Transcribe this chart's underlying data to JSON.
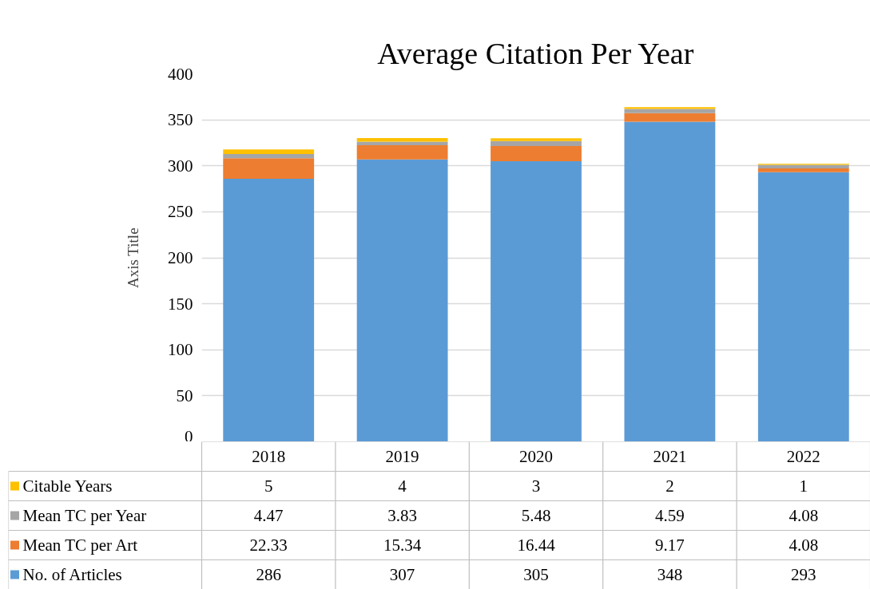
{
  "chart_data": {
    "type": "bar",
    "title": "Average Citation Per Year",
    "ylabel": "Axis Title",
    "categories": [
      "2018",
      "2019",
      "2020",
      "2021",
      "2022"
    ],
    "stacked": true,
    "series": [
      {
        "name": "No. of Articles",
        "color": "#5b9bd5",
        "values": [
          286,
          307,
          305,
          348,
          293
        ]
      },
      {
        "name": "Mean TC per Art",
        "color": "#ed7d31",
        "values": [
          22.33,
          15.34,
          16.44,
          9.17,
          4.08
        ]
      },
      {
        "name": "Mean TC per Year",
        "color": "#a5a5a5",
        "values": [
          4.47,
          3.83,
          5.48,
          4.59,
          4.08
        ]
      },
      {
        "name": "Citable Years",
        "color": "#ffc000",
        "values": [
          5,
          4,
          3,
          2,
          1
        ]
      }
    ],
    "ylim": [
      0,
      400
    ],
    "yticks": [
      0,
      50,
      100,
      150,
      200,
      250,
      300,
      350,
      400
    ],
    "grid": "y",
    "data_labels": true,
    "legend": "bottom"
  }
}
